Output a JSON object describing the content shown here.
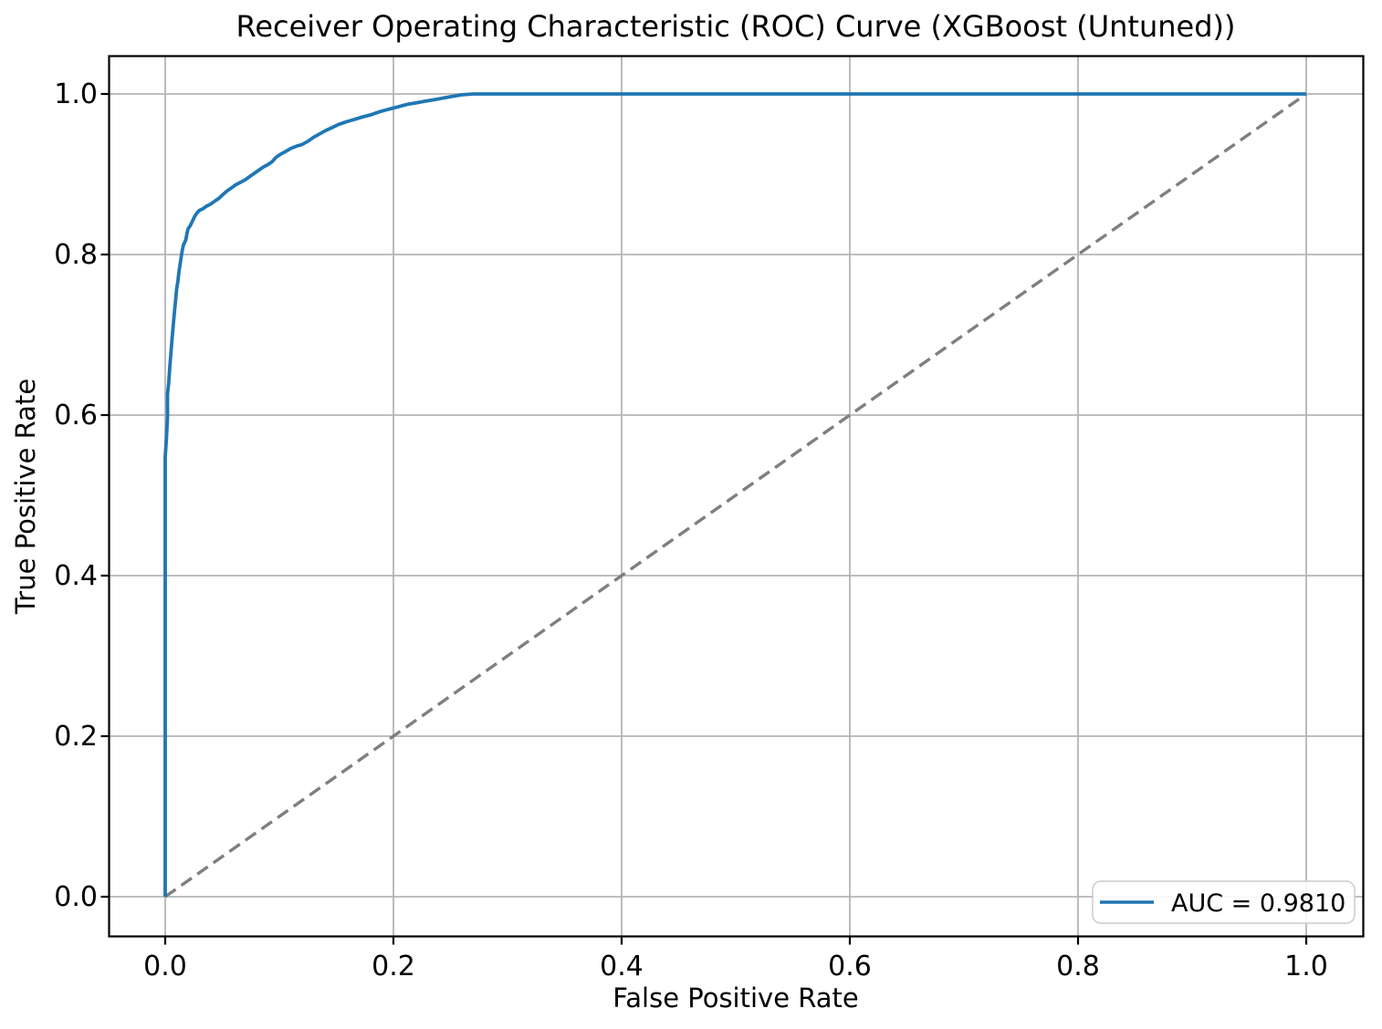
{
  "chart_data": {
    "type": "line",
    "title": "Receiver Operating Characteristic (ROC) Curve (XGBoost (Untuned))",
    "xlabel": "False Positive Rate",
    "ylabel": "True Positive Rate",
    "xlim": [
      -0.05,
      1.05
    ],
    "ylim": [
      -0.05,
      1.05
    ],
    "x_ticks": [
      "0.0",
      "0.2",
      "0.4",
      "0.6",
      "0.8",
      "1.0"
    ],
    "x_tick_values": [
      0.0,
      0.2,
      0.4,
      0.6,
      0.8,
      1.0
    ],
    "y_ticks": [
      "0.0",
      "0.2",
      "0.4",
      "0.6",
      "0.8",
      "1.0"
    ],
    "y_tick_values": [
      0.0,
      0.2,
      0.4,
      0.6,
      0.8,
      1.0
    ],
    "grid": true,
    "auc": 0.981,
    "legend": {
      "position": "lower right",
      "entries": [
        {
          "label": "AUC = 0.9810",
          "color": "#1f77b4",
          "style": "solid"
        }
      ]
    },
    "colors": {
      "roc_line": "#1f77b4",
      "chance_line": "#7f7f7f",
      "grid": "#b4b4b4",
      "frame": "#000000",
      "legend_border": "#cccccc",
      "background": "#ffffff"
    },
    "series": [
      {
        "name": "ROC curve",
        "color": "#1f77b4",
        "linestyle": "solid",
        "linewidth": 3.8,
        "points": [
          [
            0.0,
            0.0
          ],
          [
            0.0,
            0.548
          ],
          [
            0.001,
            0.57
          ],
          [
            0.002,
            0.598
          ],
          [
            0.002,
            0.626
          ],
          [
            0.003,
            0.64
          ],
          [
            0.004,
            0.66
          ],
          [
            0.005,
            0.678
          ],
          [
            0.006,
            0.695
          ],
          [
            0.007,
            0.712
          ],
          [
            0.008,
            0.727
          ],
          [
            0.009,
            0.742
          ],
          [
            0.01,
            0.757
          ],
          [
            0.011,
            0.766
          ],
          [
            0.012,
            0.778
          ],
          [
            0.013,
            0.788
          ],
          [
            0.014,
            0.797
          ],
          [
            0.015,
            0.806
          ],
          [
            0.016,
            0.812
          ],
          [
            0.018,
            0.818
          ],
          [
            0.019,
            0.826
          ],
          [
            0.02,
            0.832
          ],
          [
            0.022,
            0.836
          ],
          [
            0.024,
            0.842
          ],
          [
            0.026,
            0.848
          ],
          [
            0.028,
            0.852
          ],
          [
            0.03,
            0.855
          ],
          [
            0.033,
            0.857
          ],
          [
            0.036,
            0.86
          ],
          [
            0.04,
            0.863
          ],
          [
            0.044,
            0.867
          ],
          [
            0.047,
            0.87
          ],
          [
            0.05,
            0.874
          ],
          [
            0.054,
            0.879
          ],
          [
            0.058,
            0.883
          ],
          [
            0.062,
            0.887
          ],
          [
            0.066,
            0.89
          ],
          [
            0.07,
            0.893
          ],
          [
            0.074,
            0.897
          ],
          [
            0.078,
            0.901
          ],
          [
            0.082,
            0.905
          ],
          [
            0.086,
            0.909
          ],
          [
            0.09,
            0.912
          ],
          [
            0.094,
            0.916
          ],
          [
            0.097,
            0.921
          ],
          [
            0.1,
            0.924
          ],
          [
            0.105,
            0.928
          ],
          [
            0.11,
            0.932
          ],
          [
            0.115,
            0.935
          ],
          [
            0.12,
            0.937
          ],
          [
            0.125,
            0.941
          ],
          [
            0.13,
            0.946
          ],
          [
            0.135,
            0.95
          ],
          [
            0.14,
            0.954
          ],
          [
            0.146,
            0.958
          ],
          [
            0.152,
            0.962
          ],
          [
            0.158,
            0.965
          ],
          [
            0.165,
            0.968
          ],
          [
            0.172,
            0.971
          ],
          [
            0.18,
            0.974
          ],
          [
            0.188,
            0.978
          ],
          [
            0.196,
            0.981
          ],
          [
            0.204,
            0.984
          ],
          [
            0.212,
            0.987
          ],
          [
            0.22,
            0.989
          ],
          [
            0.228,
            0.991
          ],
          [
            0.236,
            0.993
          ],
          [
            0.244,
            0.995
          ],
          [
            0.252,
            0.997
          ],
          [
            0.26,
            0.999
          ],
          [
            0.27,
            1.0
          ],
          [
            1.0,
            1.0
          ]
        ]
      },
      {
        "name": "chance diagonal",
        "color": "#7f7f7f",
        "linestyle": "dashed",
        "linewidth": 3.4,
        "points": [
          [
            0.0,
            0.0
          ],
          [
            1.0,
            1.0
          ]
        ]
      }
    ]
  }
}
